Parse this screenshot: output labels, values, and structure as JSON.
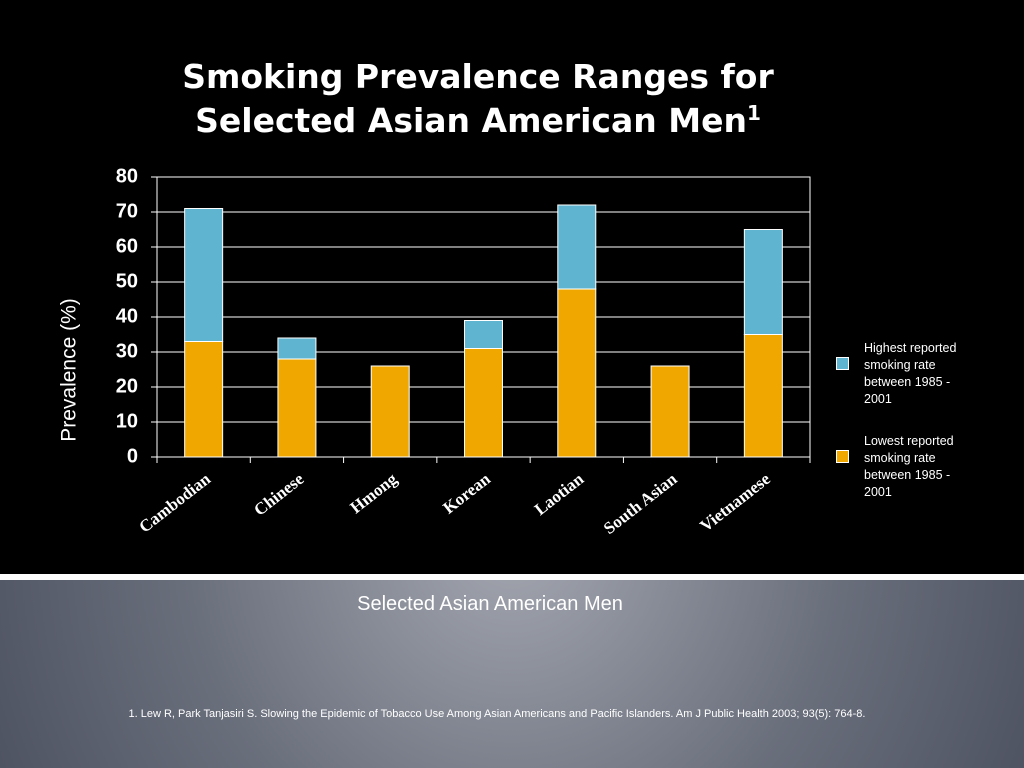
{
  "chart_data": {
    "type": "bar",
    "stacked": true,
    "title": "Smoking Prevalence Ranges for Selected Asian American Men",
    "title_superscript": "1",
    "y_label": "Prevalence (%)",
    "x_label": "Selected Asian American Men",
    "categories": [
      "Cambodian",
      "Chinese",
      "Hmong",
      "Korean",
      "Laotian",
      "South Asian",
      "Vietnamese"
    ],
    "series": [
      {
        "name": "Lowest reported smoking rate between 1985 - 2001",
        "color": "#f0a800",
        "values": [
          33,
          28,
          26,
          31,
          48,
          26,
          35
        ]
      },
      {
        "name": "Highest reported smoking rate between 1985 - 2001",
        "color": "#5fb4cf",
        "values": [
          38,
          6,
          null,
          8,
          24,
          null,
          30
        ]
      }
    ],
    "ylim": [
      0,
      80
    ],
    "yticks": [
      0,
      10,
      20,
      30,
      40,
      50,
      60,
      70,
      80
    ],
    "grid": true
  },
  "footnote": "1. Lew R, Park Tanjasiri S.  Slowing the Epidemic of Tobacco Use Among Asian Americans and Pacific Islanders. Am J Public Health 2003; 93(5): 764-8."
}
